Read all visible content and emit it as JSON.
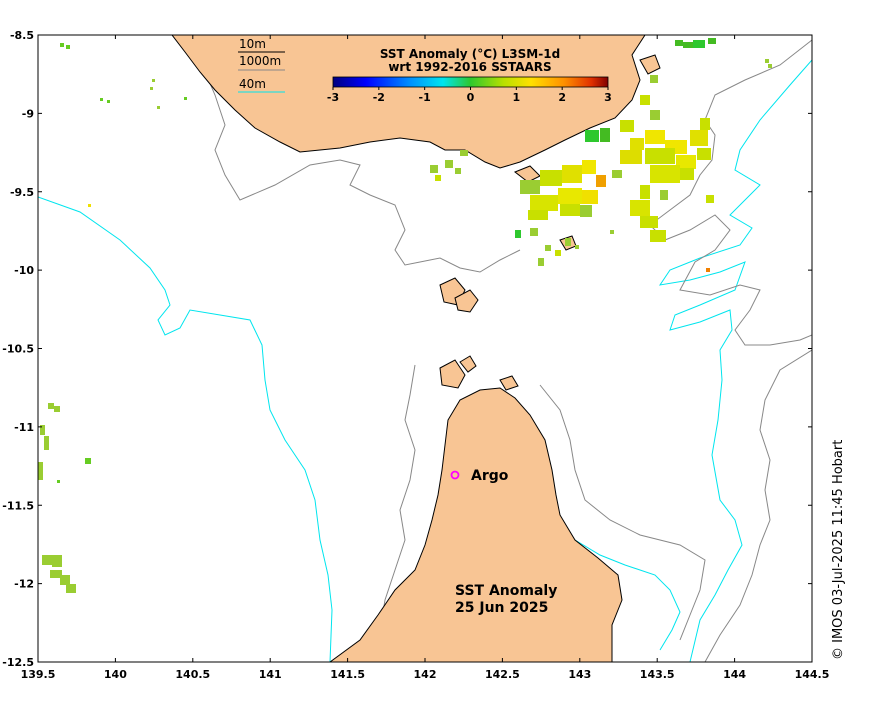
{
  "colorbar": {
    "title_line1": "SST Anomaly (°C) L3SM-1d",
    "title_line2": "wrt 1992-2016 SSTAARS",
    "ticks": [
      "-3",
      "-2",
      "-1",
      "0",
      "1",
      "2",
      "3"
    ],
    "range": [
      -3,
      3
    ]
  },
  "legend": {
    "items": [
      {
        "label": "10m",
        "color": "#000000"
      },
      {
        "label": "1000m",
        "color": "#888888"
      },
      {
        "label": "40m",
        "color": "#00e5ee"
      }
    ]
  },
  "axes": {
    "x_ticks": [
      "139.5",
      "140",
      "140.5",
      "141",
      "141.5",
      "142",
      "142.5",
      "143",
      "143.5",
      "144",
      "144.5"
    ],
    "y_ticks": [
      "-8.5",
      "-9",
      "-9.5",
      "-10",
      "-10.5",
      "-11",
      "-11.5",
      "-12",
      "-12.5"
    ],
    "lon_range": [
      139.5,
      144.5
    ],
    "lat_range": [
      -12.5,
      -8.5
    ]
  },
  "marker": {
    "label": "Argo",
    "lon": 142.2,
    "lat": -11.3,
    "color": "#ff00ff"
  },
  "annotation": {
    "line1": "SST Anomaly",
    "line2": "25 Jun 2025"
  },
  "credit": "© IMOS 03-Jul-2025 11:45 Hobart",
  "colors": {
    "land": "#f8c594",
    "coast": "#000000",
    "isobath_1000": "#888888",
    "isobath_40": "#00e5ee"
  }
}
